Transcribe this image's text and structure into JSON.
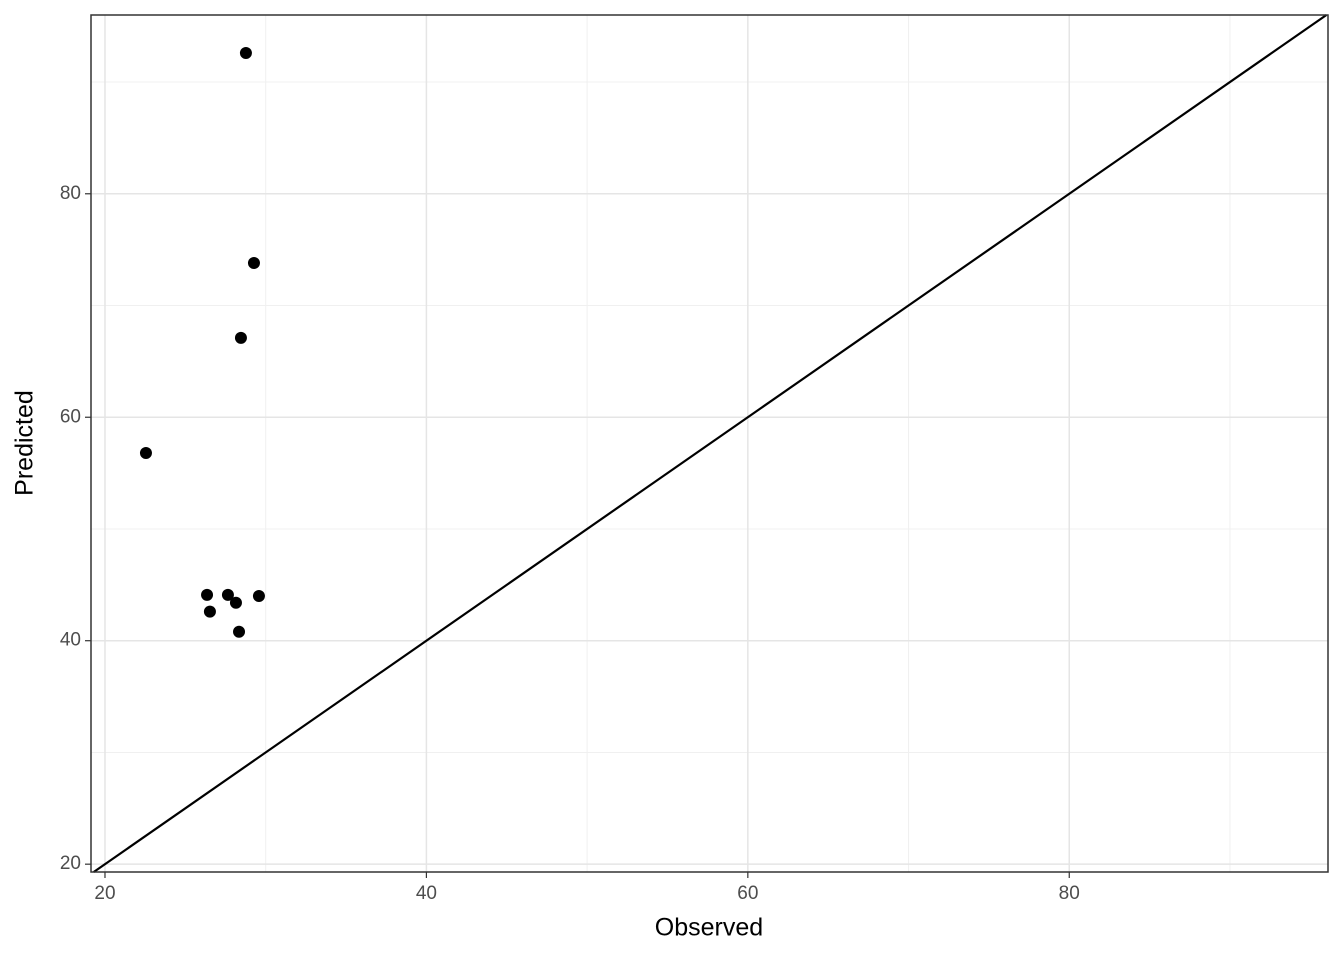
{
  "chart_data": {
    "type": "scatter",
    "x_label": "Observed",
    "y_label": "Predicted",
    "x": [
      28.77,
      29.27,
      28.46,
      22.55,
      26.35,
      27.65,
      29.58,
      28.15,
      26.53,
      28.34
    ],
    "series": [
      {
        "color": "#000000",
        "values": [
          92.6,
          73.8,
          67.1,
          56.8,
          44.1,
          44.1,
          44.0,
          43.4,
          42.6,
          40.8
        ]
      }
    ],
    "xlim": [
      19.13,
      96.1
    ],
    "ylim": [
      19.3,
      96.0
    ],
    "xticks": [
      20,
      40,
      60,
      80
    ],
    "yticks": [
      20,
      40,
      60,
      80
    ],
    "grid": true,
    "minor_grid": true,
    "identity_line": true
  }
}
